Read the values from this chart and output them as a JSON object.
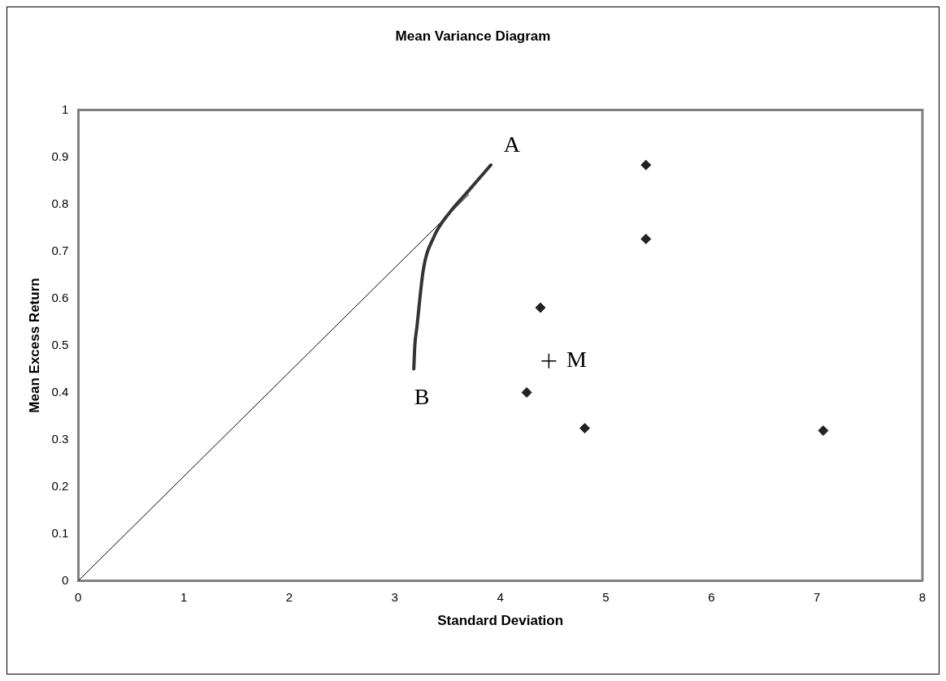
{
  "chart_data": {
    "type": "scatter",
    "title": "Mean Variance Diagram",
    "xlabel": "Standard Deviation",
    "ylabel": "Mean Excess Return",
    "xlim": [
      0,
      8
    ],
    "xticks": [
      0,
      1,
      2,
      3,
      4,
      5,
      6,
      7,
      8
    ],
    "ylim": [
      0,
      1
    ],
    "yticks": [
      0,
      0.1,
      0.2,
      0.3,
      0.4,
      0.5,
      0.6,
      0.7,
      0.8,
      0.9,
      1
    ],
    "grid": false,
    "legend": false,
    "series": [
      {
        "type": "line",
        "color": "#333333",
        "marker": "none",
        "x": [
          3.18,
          3.19,
          3.21,
          3.27,
          3.37,
          3.53,
          3.69,
          3.91
        ],
        "values": [
          0.45,
          0.5,
          0.54,
          0.66,
          0.73,
          0.785,
          0.826,
          0.883
        ]
      },
      {
        "type": "line",
        "color": "#000000",
        "marker": "none",
        "x": [
          0,
          3.7
        ],
        "values": [
          0,
          0.82
        ]
      },
      {
        "type": "scatter",
        "color": "#222222",
        "marker": "diamond",
        "x": [
          5.38,
          5.38,
          4.38,
          4.25,
          4.8,
          7.06
        ],
        "values": [
          0.883,
          0.726,
          0.58,
          0.4,
          0.324,
          0.319
        ]
      },
      {
        "type": "scatter",
        "color": "#000000",
        "marker": "cross",
        "x": [
          4.46
        ],
        "values": [
          0.467
        ]
      }
    ],
    "annotations": [
      {
        "text": "A",
        "x": 3.91,
        "y": 0.883
      },
      {
        "text": "B",
        "x": 3.18,
        "y": 0.45
      },
      {
        "text": "M",
        "x": 4.46,
        "y": 0.467
      }
    ]
  }
}
